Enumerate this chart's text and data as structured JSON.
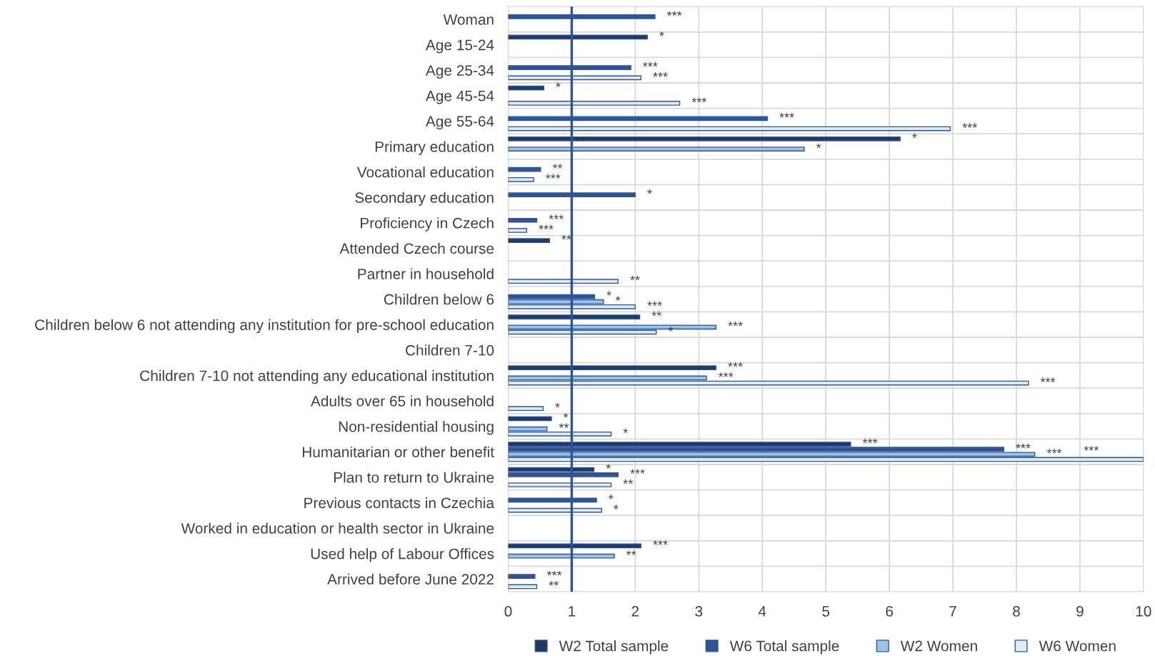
{
  "chart_data": {
    "type": "bar",
    "orientation": "horizontal",
    "categories": [
      "Woman",
      "Age 15-24",
      "Age 25-34",
      "Age 45-54",
      "Age 55-64",
      "Primary education",
      "Vocational education",
      "Secondary education",
      "Proficiency in Czech",
      "Attended Czech course",
      "Partner in household",
      "Children below 6",
      "Children below 6 not attending any institution for pre-school education",
      "Children 7-10",
      "Children 7-10 not attending any educational institution",
      "Adults over 65 in household",
      "Non-residential housing",
      "Humanitarian or other benefit",
      "Plan to return to Ukraine",
      "Previous contacts in Czechia",
      "Worked in education or health sector in Ukraine",
      "Used help of Labour Offices",
      "Arrived before June 2022"
    ],
    "series": [
      {
        "name": "W2 Total sample",
        "color": "#1f3864",
        "values": [
          null,
          2.19,
          null,
          0.56,
          null,
          6.17,
          null,
          null,
          null,
          0.65,
          null,
          null,
          2.07,
          null,
          3.27,
          null,
          0.68,
          5.39,
          1.35,
          null,
          null,
          2.09,
          null
        ],
        "value_labels": [
          null,
          "*",
          null,
          "*",
          null,
          "*",
          null,
          null,
          null,
          "**",
          null,
          null,
          "**",
          null,
          "***",
          null,
          "*",
          "***",
          "*",
          null,
          null,
          "***",
          null
        ]
      },
      {
        "name": "W6 Total sample",
        "color": "#2f5597",
        "values": [
          2.31,
          null,
          1.93,
          null,
          4.08,
          null,
          0.51,
          2.0,
          0.45,
          null,
          null,
          1.36,
          null,
          null,
          null,
          null,
          null,
          7.8,
          1.73,
          1.39,
          null,
          null,
          0.42
        ],
        "value_labels": [
          "***",
          null,
          "***",
          null,
          "***",
          null,
          "**",
          "*",
          "***",
          null,
          null,
          "*",
          null,
          null,
          null,
          null,
          null,
          "***",
          "***",
          "*",
          null,
          null,
          "***"
        ]
      },
      {
        "name": "W2 Women",
        "color": "#9dc3e6",
        "values": [
          null,
          null,
          null,
          null,
          null,
          4.66,
          null,
          null,
          null,
          null,
          null,
          1.5,
          3.27,
          null,
          3.12,
          null,
          0.61,
          8.29,
          null,
          null,
          null,
          1.67,
          null
        ],
        "value_labels": [
          null,
          null,
          null,
          null,
          null,
          "*",
          null,
          null,
          null,
          null,
          null,
          "*",
          "***",
          null,
          "***",
          null,
          "**",
          "***",
          null,
          null,
          null,
          "**",
          null
        ]
      },
      {
        "name": "W6 Women",
        "color": "#deebf7",
        "values": [
          null,
          null,
          2.09,
          2.7,
          6.96,
          null,
          0.4,
          null,
          0.29,
          null,
          1.73,
          2.0,
          2.33,
          null,
          8.19,
          0.55,
          1.62,
          10,
          1.62,
          1.47,
          null,
          null,
          0.45
        ],
        "value_labels": [
          null,
          null,
          "***",
          "***",
          "***",
          null,
          "***",
          null,
          "***",
          null,
          "**",
          "***",
          "*",
          null,
          "***",
          "*",
          "*",
          "***",
          "**",
          "*",
          null,
          null,
          "**"
        ]
      }
    ],
    "xlim": [
      0,
      10
    ],
    "xticks": [
      0,
      1,
      2,
      3,
      4,
      5,
      6,
      7,
      8,
      9,
      10
    ],
    "ref_lines": [
      {
        "axis": "x",
        "value": 1,
        "color": "#2f5597"
      }
    ],
    "grid": true,
    "legend": "bottom"
  }
}
